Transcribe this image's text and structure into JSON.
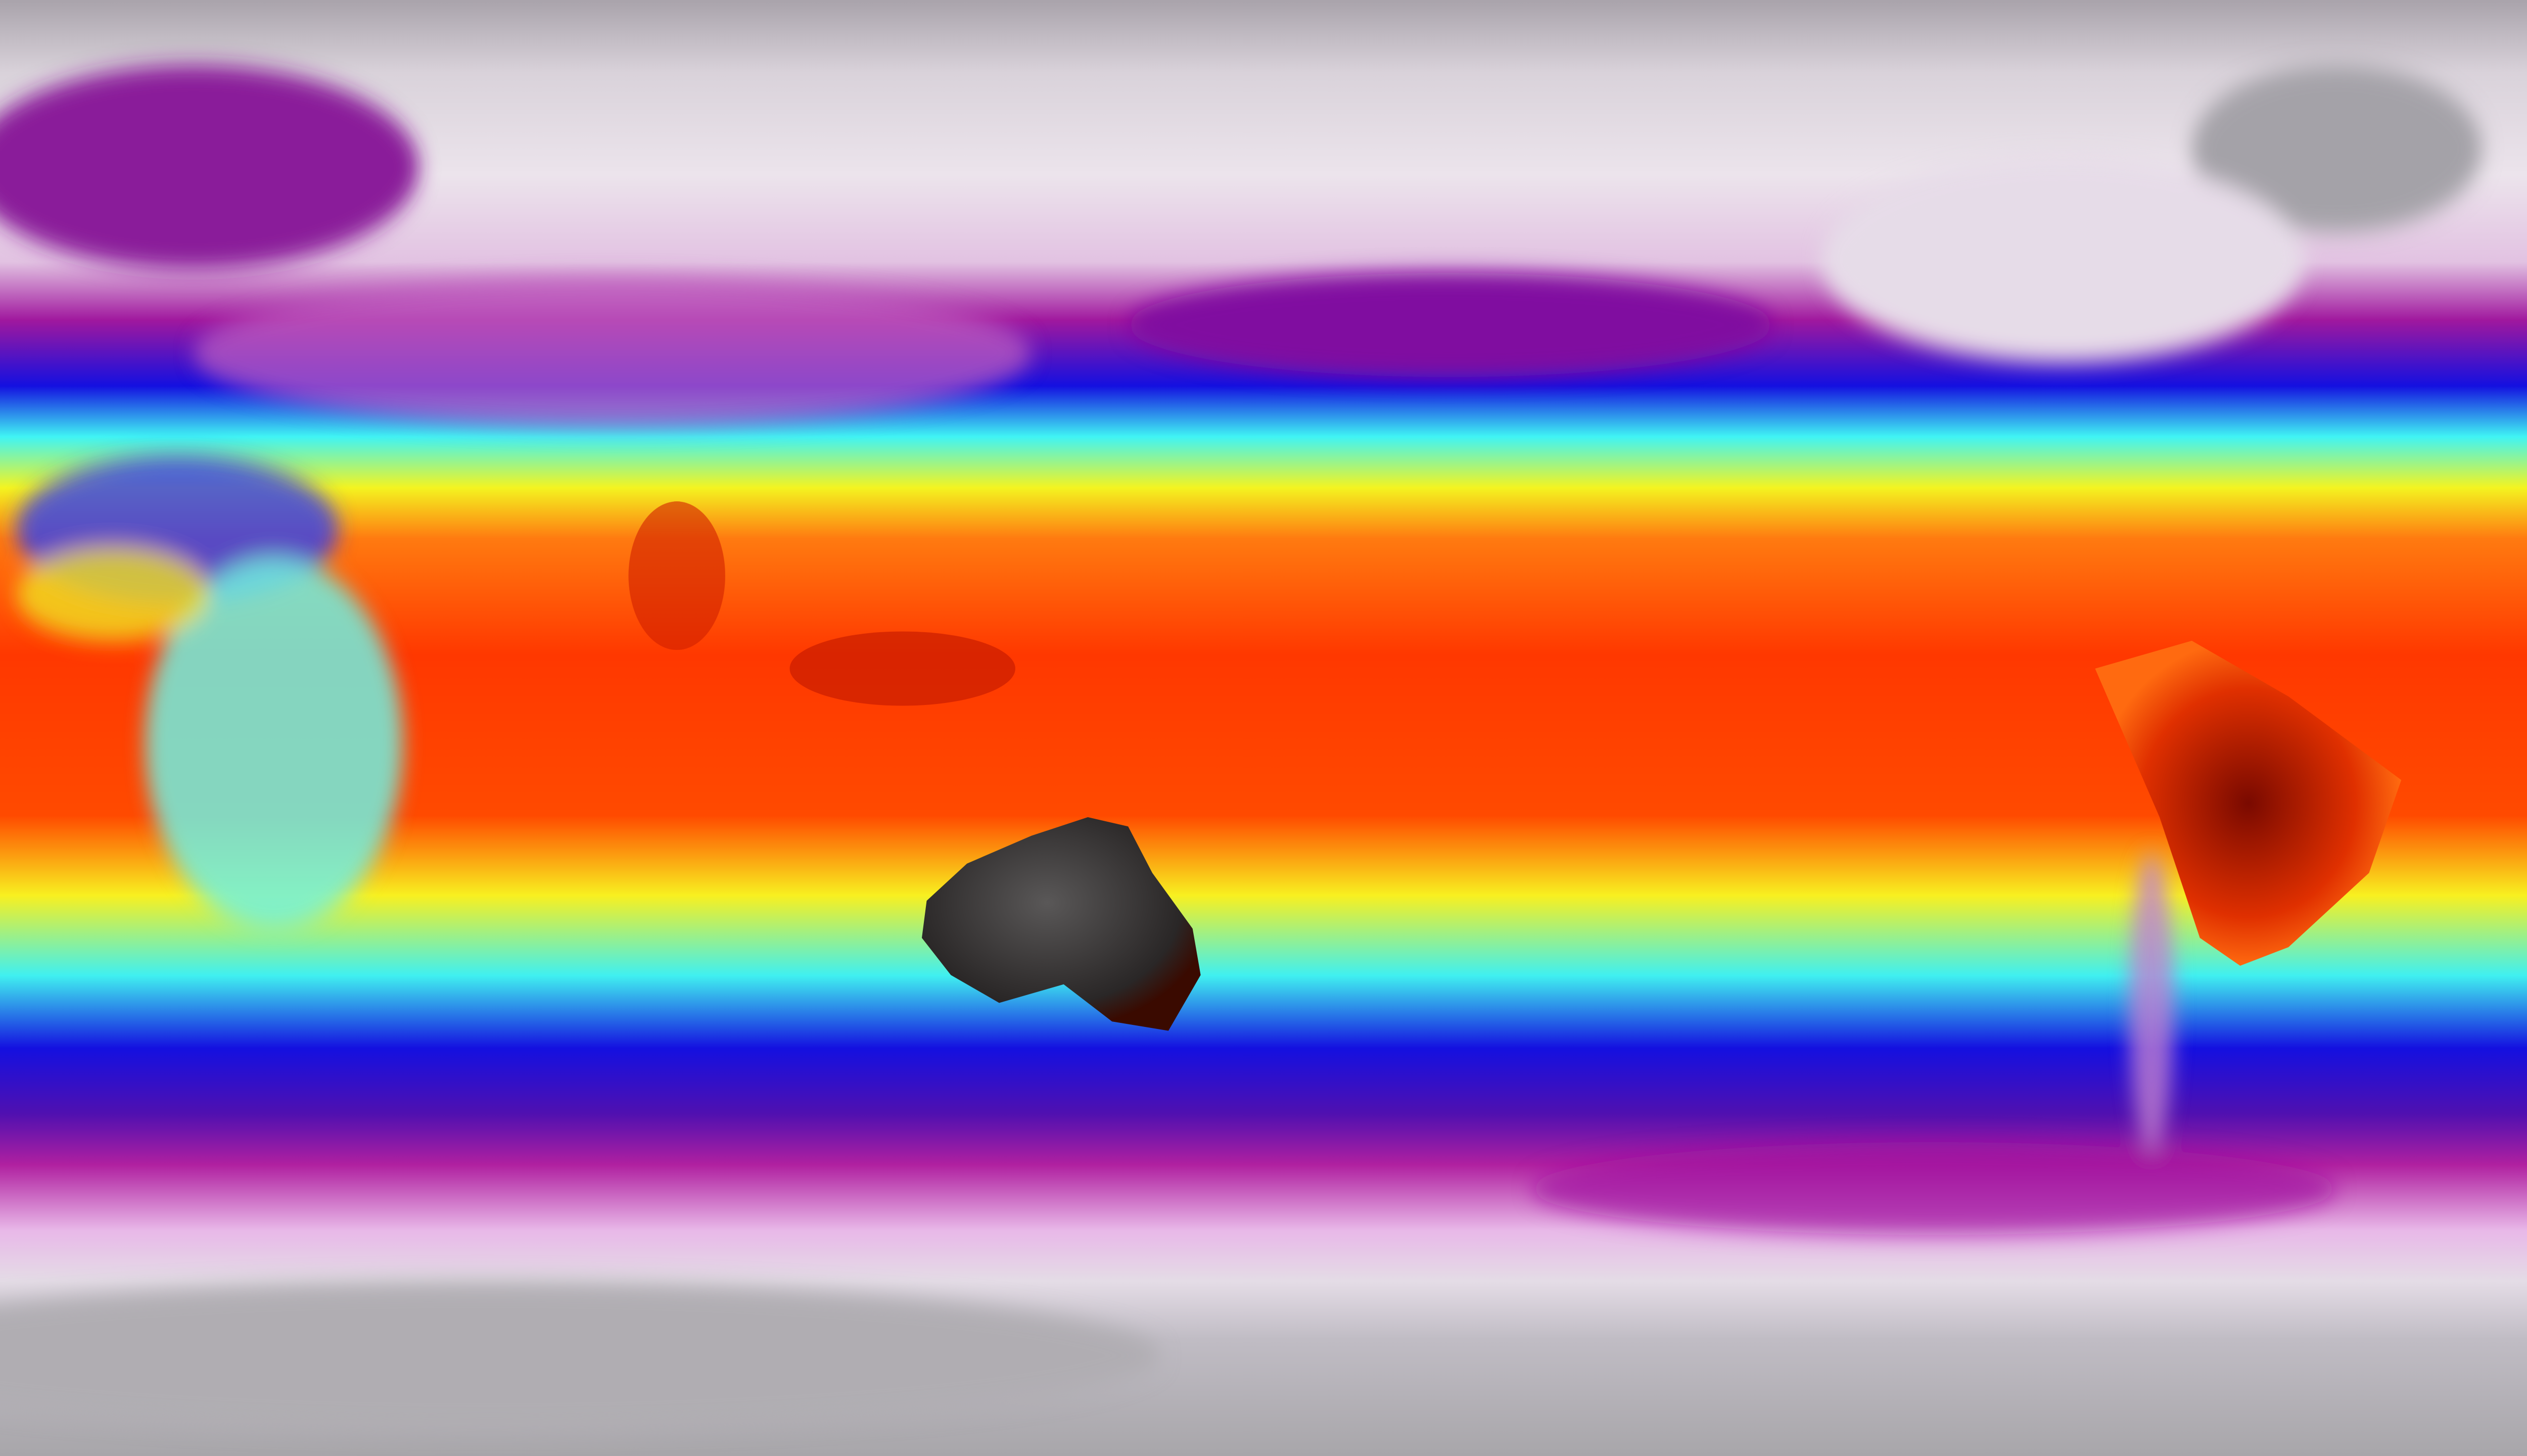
{
  "map": {
    "projection": "equirectangular",
    "colormap": {
      "polar_gray": "#a8a6aa",
      "polar_white": "#ebe2ec",
      "light_pink": "#e6c4e6",
      "purple": "#a0189e",
      "blue": "#1410e0",
      "cyan": "#40f4f4",
      "yellow": "#f4f420",
      "orange": "#ff7a10",
      "red": "#ff3000",
      "dark_land": "#2a2727"
    }
  }
}
